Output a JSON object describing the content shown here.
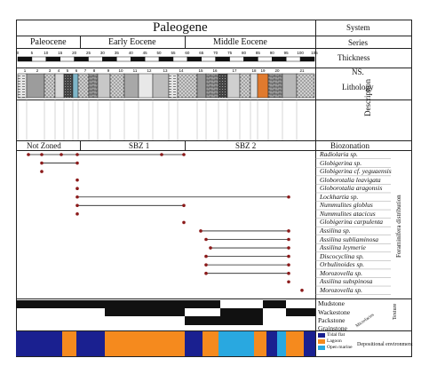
{
  "header": {
    "title": "Paleogene",
    "series": [
      "Paleocene",
      "Early Eocene",
      "Middle Eocene"
    ]
  },
  "right_labels": {
    "system": "System",
    "series": "Series",
    "thickness": "Thickness",
    "ns": "NS.",
    "lithology": "Lithology",
    "description": "Description",
    "biozonation": "Biozonation",
    "foram_distribution": "Foraminifera distribution",
    "texture": "Texture",
    "microfacies": "Microfacies",
    "depositional_environment": "Depositional environment"
  },
  "biozones": [
    "Not Zoned",
    "SBZ 1",
    "SBZ 2"
  ],
  "thickness_ticks": [
    "0",
    "5",
    "10",
    "15",
    "20",
    "25",
    "30",
    "35",
    "40",
    "45",
    "50",
    "55",
    "60",
    "65",
    "70",
    "75",
    "80",
    "85",
    "90",
    "95",
    "100",
    "105"
  ],
  "ns_labels": [
    "1",
    "2",
    "3",
    "4",
    "5",
    "6",
    "7",
    "8",
    "9",
    "10",
    "11",
    "12",
    "13",
    "14",
    "15",
    "16",
    "17",
    "18",
    "19",
    "20",
    "21"
  ],
  "taxa": [
    {
      "name": "Radiolaria sp.",
      "dots": [
        32,
        47,
        69,
        87,
        182,
        207
      ],
      "range": [
        32,
        207
      ]
    },
    {
      "name": "Globigerina sp.",
      "dots": [
        47,
        87
      ],
      "range": [
        47,
        87
      ]
    },
    {
      "name": "Globigerina cf. yeguaensis",
      "dots": [
        47
      ],
      "range": null
    },
    {
      "name": "Globorotalia leavigata",
      "dots": [
        87
      ],
      "range": null
    },
    {
      "name": "Globorotalia aragonsis",
      "dots": [
        87
      ],
      "range": null
    },
    {
      "name": "Lockhartia sp.",
      "dots": [
        87,
        325
      ],
      "range": [
        87,
        325
      ]
    },
    {
      "name": "Nummulites globlus",
      "dots": [
        87,
        207
      ],
      "range": [
        87,
        207
      ]
    },
    {
      "name": "Nummulites atacicus",
      "dots": [
        87
      ],
      "range": null
    },
    {
      "name": "Globigerina carpulenta",
      "dots": [
        207
      ],
      "range": null
    },
    {
      "name": "Assilina sp.",
      "dots": [
        226,
        325
      ],
      "range": [
        226,
        325
      ]
    },
    {
      "name": "Assilina subliaminosa",
      "dots": [
        232,
        325
      ],
      "range": [
        232,
        325
      ]
    },
    {
      "name": "Assilina leymerie",
      "dots": [
        237,
        325
      ],
      "range": [
        237,
        325
      ]
    },
    {
      "name": "Discocyclina sp.",
      "dots": [
        232,
        325
      ],
      "range": [
        232,
        325
      ]
    },
    {
      "name": "Orbulinoides sp.",
      "dots": [
        232,
        325
      ],
      "range": [
        232,
        325
      ]
    },
    {
      "name": "Morozovella sp.",
      "dots": [
        232,
        325
      ],
      "range": [
        232,
        325
      ]
    },
    {
      "name": "Assilina subspinosa",
      "dots": [
        325
      ],
      "range": null
    },
    {
      "name": "Morozovella sp.",
      "dots": [
        340
      ],
      "range": null
    }
  ],
  "texture_rows": [
    "Mudstone",
    "Wackestone",
    "Packstone",
    "Grainstone"
  ],
  "env_legend": [
    "Tidal flat",
    "Lagoon",
    "Open marine"
  ],
  "colors": {
    "tidal_flat": "#1a2090",
    "lagoon": "#f58a1e",
    "open_marine": "#29a8e0"
  }
}
